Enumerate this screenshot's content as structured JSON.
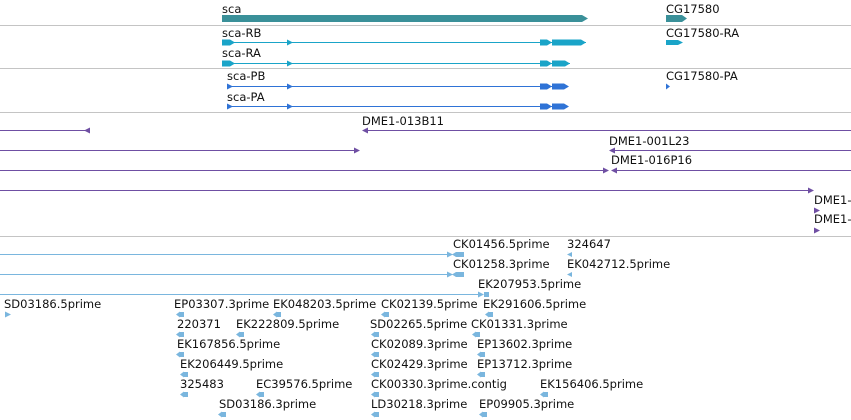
{
  "colors": {
    "gene": "#3a9099",
    "transcript_rb": "#1aa4c8",
    "transcript_blue": "#2f73d6",
    "bac": "#6f4fa3",
    "est": "#7ab6de",
    "divider": "#c4c4c4"
  },
  "genes": {
    "sca": "sca",
    "cg17580": "CG17580"
  },
  "transcripts": {
    "sca_rb": "sca-RB",
    "sca_ra": "sca-RA",
    "cg17580_ra": "CG17580-RA",
    "sca_pb": "sca-PB",
    "sca_pa": "sca-PA",
    "cg17580_pa": "CG17580-PA"
  },
  "bac_clones": {
    "c013b11": "DME1-013B11",
    "c001l23": "DME1-001L23",
    "c016p16": "DME1-016P16",
    "cut1": "DME1-",
    "cut2": "DME1-"
  },
  "est_labels": [
    "CK01456.5prime",
    "324647",
    "CK01258.3prime",
    "EK042712.5prime",
    "EK207953.5prime",
    "SD03186.5prime",
    "EP03307.3prime",
    "EK048203.5prime",
    "CK02139.5prime",
    "EK291606.5prime",
    "220371",
    "EK222809.5prime",
    "SD02265.5prime",
    "CK01331.3prime",
    "EK167856.5prime",
    "CK02089.3prime",
    "EP13602.3prime",
    "EK206449.5prime",
    "CK02429.3prime",
    "EP13712.3prime",
    "325483",
    "EC39576.5prime",
    "CK00330.3prime.contig",
    "EK156406.5prime",
    "SD03186.3prime",
    "LD30218.3prime",
    "EP09905.3prime"
  ]
}
